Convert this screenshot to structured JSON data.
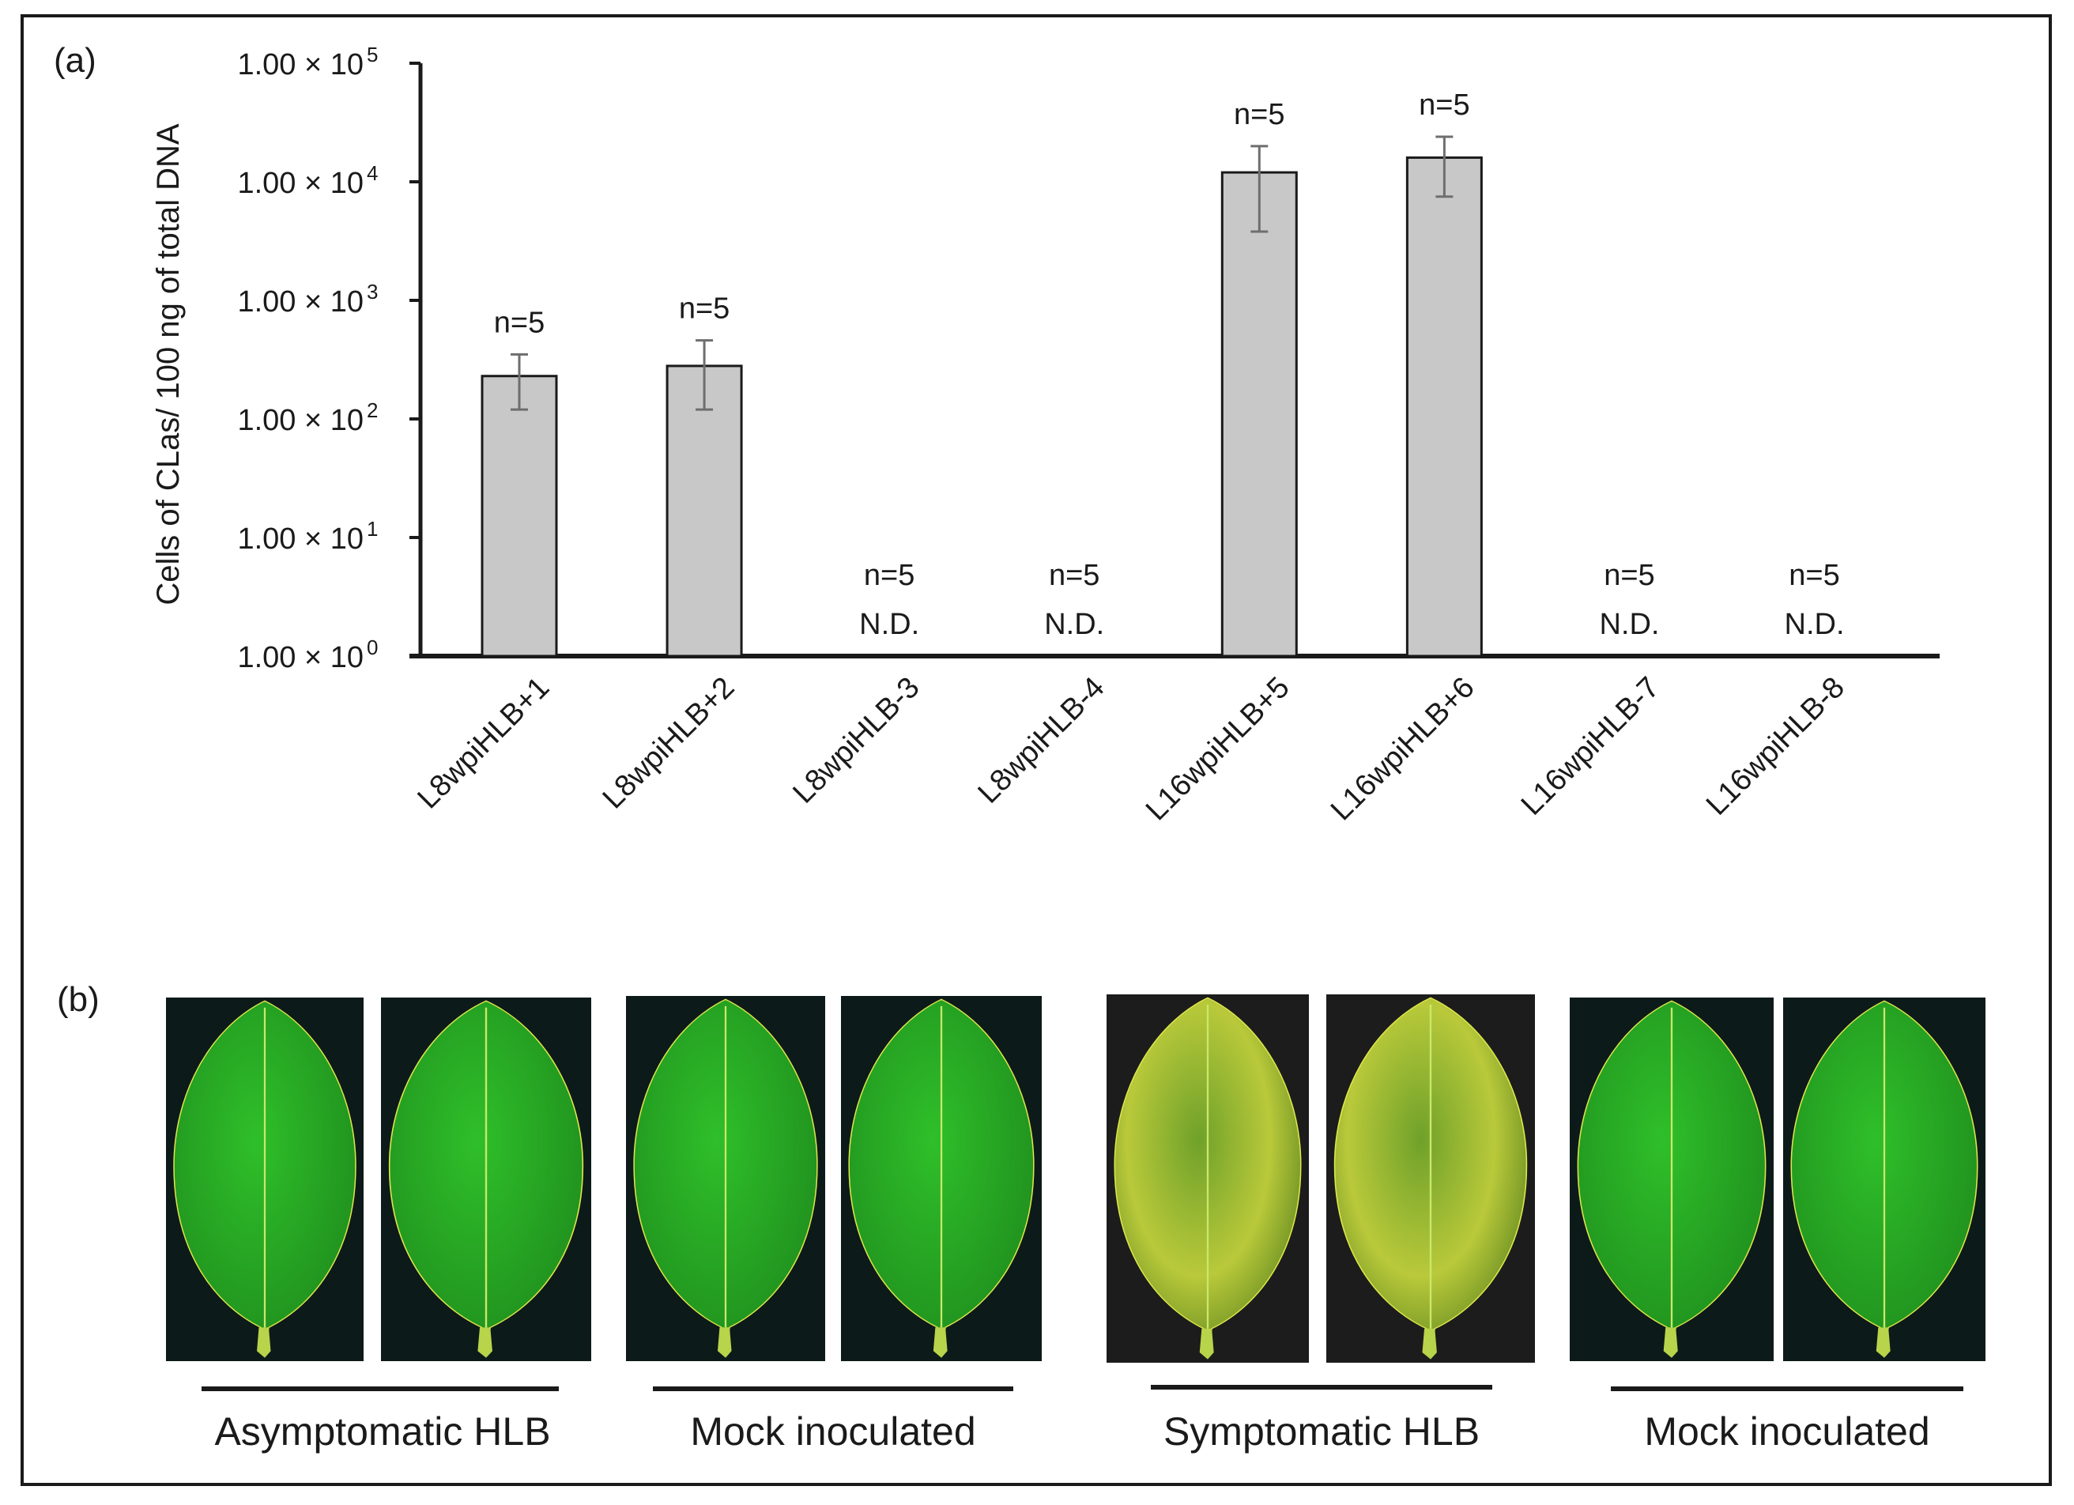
{
  "panels": {
    "a_label": "(a)",
    "b_label": "(b)"
  },
  "chart_data": {
    "type": "bar",
    "ylabel": "Cells of CLas/ 100 ng of total DNA",
    "yscale": "log",
    "ylim": [
      1,
      100000
    ],
    "ytick_values": [
      1,
      10,
      100,
      1000,
      10000,
      100000
    ],
    "ytick_bases": [
      "1.00 × 10",
      "1.00 × 10",
      "1.00 × 10",
      "1.00 × 10",
      "1.00 × 10",
      "1.00 × 10"
    ],
    "ytick_exponents": [
      "0",
      "1",
      "2",
      "3",
      "4",
      "5"
    ],
    "categories": [
      "L8wpiHLB+1",
      "L8wpiHLB+2",
      "L8wpiHLB-3",
      "L8wpiHLB-4",
      "L16wpiHLB+5",
      "L16wpiHLB+6",
      "L16wpiHLB-7",
      "L16wpiHLB-8"
    ],
    "values": [
      230,
      280,
      null,
      null,
      12000,
      16000,
      null,
      null
    ],
    "error_low": [
      120,
      120,
      null,
      null,
      3800,
      7500,
      null,
      null
    ],
    "error_high": [
      350,
      460,
      null,
      null,
      20000,
      24000,
      null,
      null
    ],
    "n_labels": [
      "n=5",
      "n=5",
      "n=5",
      "n=5",
      "n=5",
      "n=5",
      "n=5",
      "n=5"
    ],
    "nd_labels": [
      "",
      "",
      "N.D.",
      "N.D.",
      "",
      "",
      "N.D.",
      "N.D."
    ],
    "bar_color": "#c8c8c8",
    "bar_edge_color": "#1a1a1a",
    "error_color": "#6e6e6e",
    "grid": false
  },
  "leaf_groups": [
    {
      "caption": "Asymptomatic HLB",
      "type": "healthy"
    },
    {
      "caption": "Mock inoculated",
      "type": "healthy"
    },
    {
      "caption": "Symptomatic HLB",
      "type": "symptomatic"
    },
    {
      "caption": "Mock inoculated",
      "type": "healthy"
    }
  ],
  "colors": {
    "leaf_green": "#2fbf2a",
    "leaf_dark": "#1e8a1c",
    "photo_bg": "#0d1a1a",
    "symptom_yellow": "#b9c93a"
  }
}
